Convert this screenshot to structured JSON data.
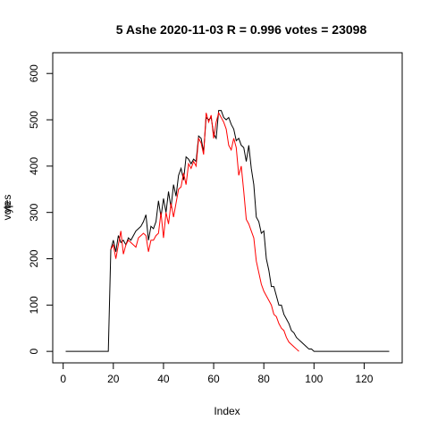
{
  "chart_data": {
    "type": "line",
    "title": "5 Ashe 2020-11-03 R = 0.996 votes = 23098",
    "xlabel": "Index",
    "ylabel_overlap": [
      "votes",
      "yp"
    ],
    "xlim": [
      1,
      130
    ],
    "ylim": [
      0,
      620
    ],
    "xticks": [
      0,
      20,
      40,
      60,
      80,
      100,
      120
    ],
    "yticks": [
      0,
      100,
      200,
      300,
      400,
      500,
      600
    ],
    "grid": false,
    "series": [
      {
        "color": "#000000",
        "x_start": 1,
        "values": [
          0,
          0,
          0,
          0,
          0,
          0,
          0,
          0,
          0,
          0,
          0,
          0,
          0,
          0,
          0,
          0,
          0,
          0,
          220,
          240,
          215,
          250,
          235,
          240,
          230,
          245,
          240,
          250,
          260,
          265,
          270,
          280,
          295,
          240,
          270,
          265,
          280,
          325,
          290,
          330,
          300,
          345,
          310,
          360,
          335,
          380,
          395,
          370,
          420,
          415,
          405,
          415,
          410,
          465,
          460,
          430,
          505,
          500,
          505,
          470,
          460,
          520,
          520,
          505,
          500,
          505,
          490,
          480,
          455,
          460,
          445,
          440,
          410,
          445,
          395,
          360,
          290,
          280,
          255,
          260,
          200,
          175,
          140,
          140,
          120,
          100,
          100,
          80,
          70,
          60,
          45,
          40,
          30,
          25,
          20,
          15,
          10,
          5,
          5,
          0,
          0,
          0,
          0,
          0,
          0,
          0,
          0,
          0,
          0,
          0,
          0,
          0,
          0,
          0,
          0,
          0,
          0,
          0,
          0,
          0,
          0,
          0,
          0,
          0,
          0,
          0,
          0,
          0,
          0,
          0
        ]
      },
      {
        "color": "#ff0000",
        "x_start": 19,
        "values": [
          220,
          230,
          200,
          230,
          260,
          210,
          230,
          240,
          235,
          230,
          225,
          245,
          250,
          255,
          250,
          215,
          240,
          240,
          250,
          255,
          300,
          245,
          300,
          275,
          320,
          290,
          320,
          350,
          355,
          385,
          360,
          405,
          395,
          410,
          400,
          460,
          450,
          425,
          515,
          495,
          510,
          460,
          495,
          515,
          505,
          495,
          480,
          445,
          435,
          460,
          440,
          380,
          400,
          345,
          285,
          275,
          260,
          245,
          195,
          170,
          145,
          130,
          120,
          110,
          100,
          80,
          75,
          60,
          50,
          45,
          30,
          20,
          15,
          10,
          5,
          0
        ]
      }
    ]
  }
}
